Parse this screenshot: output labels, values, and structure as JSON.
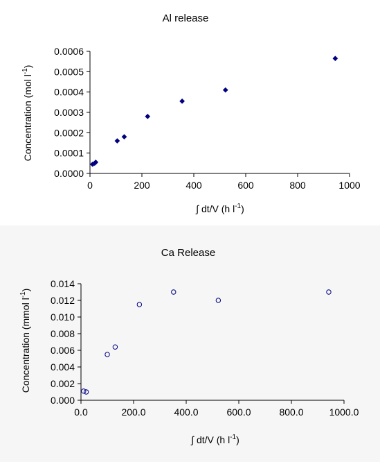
{
  "chart_data": [
    {
      "type": "scatter",
      "title": "Al release",
      "xlabel_main": "∫ dt/V (h l",
      "xlabel_sup": "-1",
      "xlabel_end": ")",
      "ylabel_main": "Concentration (mol l",
      "ylabel_sup": "-1",
      "ylabel_end": ")",
      "xlim": [
        0,
        1000
      ],
      "ylim": [
        0,
        0.0006
      ],
      "x_ticks": [
        0,
        200,
        400,
        600,
        800,
        1000
      ],
      "x_tick_labels": [
        "0",
        "200",
        "400",
        "600",
        "800",
        "1000"
      ],
      "y_ticks": [
        0,
        0.0001,
        0.0002,
        0.0003,
        0.0004,
        0.0005,
        0.0006
      ],
      "y_tick_labels": [
        "0.0000",
        "0.0001",
        "0.0002",
        "0.0003",
        "0.0004",
        "0.0005",
        "0.0006"
      ],
      "marker": "diamond",
      "color": "#000080",
      "grid": false,
      "points": [
        {
          "x": 10,
          "y": 4.5e-05
        },
        {
          "x": 18,
          "y": 5e-05
        },
        {
          "x": 22,
          "y": 5.5e-05
        },
        {
          "x": 105,
          "y": 0.00016
        },
        {
          "x": 132,
          "y": 0.00018
        },
        {
          "x": 222,
          "y": 0.00028
        },
        {
          "x": 355,
          "y": 0.000355
        },
        {
          "x": 522,
          "y": 0.00041
        },
        {
          "x": 945,
          "y": 0.000565
        }
      ]
    },
    {
      "type": "scatter",
      "title": "Ca Release",
      "xlabel_main": "∫ dt/V (h l",
      "xlabel_sup": "-1",
      "xlabel_end": ")",
      "ylabel_main": "Concentration (mmol l",
      "ylabel_sup": "-1",
      "ylabel_end": ")",
      "xlim": [
        0,
        1000
      ],
      "ylim": [
        0,
        0.014
      ],
      "x_ticks": [
        0,
        200,
        400,
        600,
        800,
        1000
      ],
      "x_tick_labels": [
        "0.0",
        "200.0",
        "400.0",
        "600.0",
        "800.0",
        "1000.0"
      ],
      "y_ticks": [
        0,
        0.002,
        0.004,
        0.006,
        0.008,
        0.01,
        0.012,
        0.014
      ],
      "y_tick_labels": [
        "0.000",
        "0.002",
        "0.004",
        "0.006",
        "0.008",
        "0.010",
        "0.012",
        "0.014"
      ],
      "marker": "open-circle",
      "color": "#000080",
      "grid": false,
      "points": [
        {
          "x": 10,
          "y": 0.0011
        },
        {
          "x": 20,
          "y": 0.001
        },
        {
          "x": 100,
          "y": 0.0055
        },
        {
          "x": 130,
          "y": 0.0064
        },
        {
          "x": 222,
          "y": 0.0115
        },
        {
          "x": 352,
          "y": 0.013
        },
        {
          "x": 522,
          "y": 0.012
        },
        {
          "x": 942,
          "y": 0.013
        }
      ]
    }
  ]
}
